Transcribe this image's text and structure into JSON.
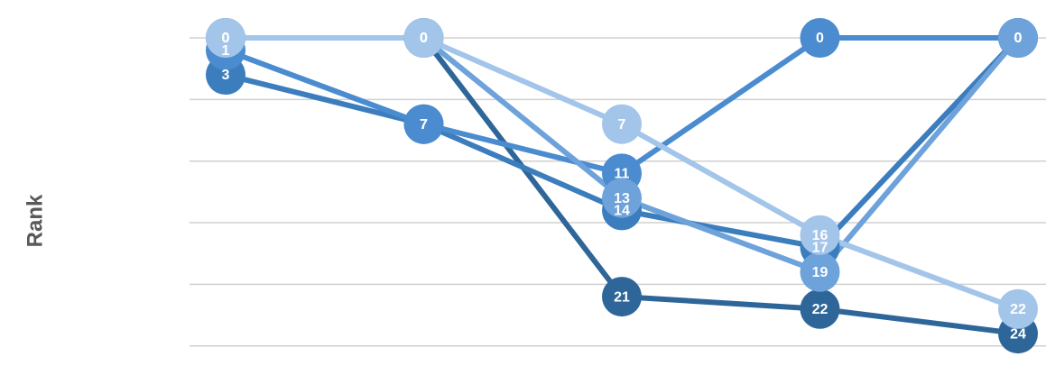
{
  "chart_data": {
    "type": "line",
    "y_axis_label": "Rank",
    "categories": [
      null,
      null,
      null,
      null,
      null
    ],
    "ylim": [
      0,
      25
    ],
    "yticks": [
      0,
      5,
      10,
      15,
      20,
      25
    ],
    "y_inverted": true,
    "grid": true,
    "series": [
      {
        "name": null,
        "color": "#2f6699",
        "values": [
          0,
          0,
          21,
          22,
          24
        ]
      },
      {
        "name": null,
        "color": "#3b7dbd",
        "values": [
          3,
          7,
          14,
          17,
          0
        ]
      },
      {
        "name": null,
        "color": "#4a8ccf",
        "values": [
          1,
          7,
          11,
          0,
          0
        ]
      },
      {
        "name": null,
        "color": "#6ea2db",
        "values": [
          0,
          0,
          13,
          19,
          0
        ]
      },
      {
        "name": null,
        "color": "#a3c5ea",
        "values": [
          0,
          0,
          7,
          16,
          22
        ]
      }
    ]
  }
}
